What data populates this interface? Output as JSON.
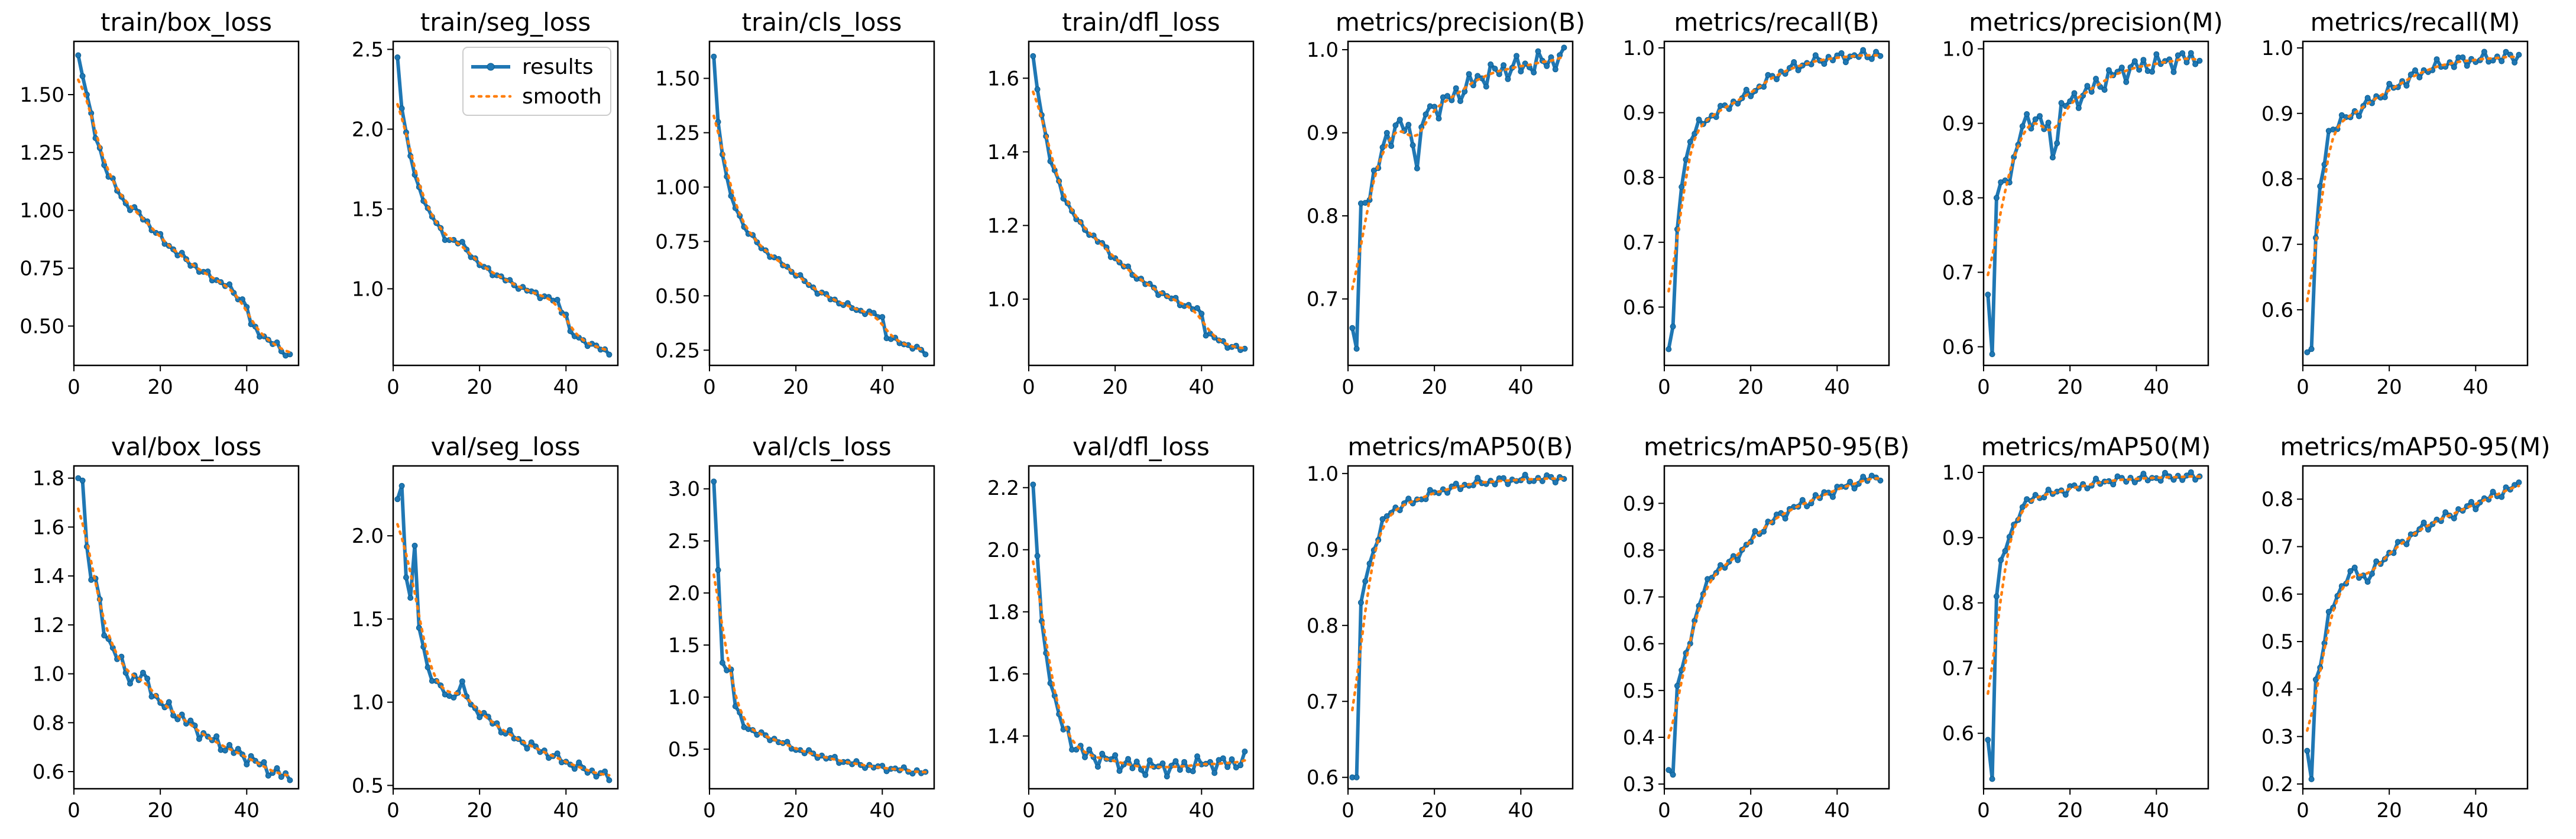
{
  "colors": {
    "results": "#1f77b4",
    "smooth": "#ff7f0e",
    "results_marker_edge": "#0a5d8f"
  },
  "legend": {
    "results_label": "results",
    "smooth_label": "smooth"
  },
  "chart_data": [
    {
      "type": "line",
      "title": "train/box_loss",
      "xlim": [
        0,
        52
      ],
      "ylim": [
        0.33,
        1.73
      ],
      "xticks": [
        "0",
        "20",
        "40"
      ],
      "yticks": [
        "0.50",
        "0.75",
        "1.00",
        "1.25",
        "1.50"
      ],
      "anchors": [
        [
          1,
          1.67
        ],
        [
          2,
          1.58
        ],
        [
          3,
          1.5
        ],
        [
          5,
          1.32
        ],
        [
          8,
          1.15
        ],
        [
          12,
          1.03
        ],
        [
          16,
          0.97
        ],
        [
          20,
          0.88
        ],
        [
          25,
          0.8
        ],
        [
          30,
          0.73
        ],
        [
          35,
          0.68
        ],
        [
          39,
          0.61
        ],
        [
          40,
          0.59
        ],
        [
          41,
          0.5
        ],
        [
          45,
          0.44
        ],
        [
          50,
          0.37
        ]
      ],
      "noise": 0.012
    },
    {
      "type": "line",
      "title": "train/seg_loss",
      "xlim": [
        0,
        52
      ],
      "ylim": [
        0.52,
        2.55
      ],
      "xticks": [
        "0",
        "20",
        "40"
      ],
      "yticks": [
        "1.0",
        "1.5",
        "2.0",
        "2.5"
      ],
      "anchors": [
        [
          1,
          2.45
        ],
        [
          2,
          2.13
        ],
        [
          3,
          1.98
        ],
        [
          5,
          1.7
        ],
        [
          8,
          1.5
        ],
        [
          12,
          1.32
        ],
        [
          16,
          1.28
        ],
        [
          20,
          1.15
        ],
        [
          25,
          1.07
        ],
        [
          30,
          1.0
        ],
        [
          35,
          0.95
        ],
        [
          38,
          0.92
        ],
        [
          39,
          0.86
        ],
        [
          40,
          0.85
        ],
        [
          41,
          0.72
        ],
        [
          45,
          0.66
        ],
        [
          50,
          0.6
        ]
      ],
      "noise": 0.012
    },
    {
      "type": "line",
      "title": "train/cls_loss",
      "xlim": [
        0,
        52
      ],
      "ylim": [
        0.18,
        1.67
      ],
      "xticks": [
        "0",
        "20",
        "40"
      ],
      "yticks": [
        "0.25",
        "0.50",
        "0.75",
        "1.00",
        "1.25",
        "1.50"
      ],
      "anchors": [
        [
          1,
          1.6
        ],
        [
          2,
          1.3
        ],
        [
          3,
          1.15
        ],
        [
          5,
          0.95
        ],
        [
          8,
          0.82
        ],
        [
          12,
          0.72
        ],
        [
          16,
          0.66
        ],
        [
          20,
          0.6
        ],
        [
          25,
          0.52
        ],
        [
          30,
          0.47
        ],
        [
          35,
          0.43
        ],
        [
          39,
          0.41
        ],
        [
          40,
          0.4
        ],
        [
          41,
          0.31
        ],
        [
          45,
          0.28
        ],
        [
          50,
          0.24
        ]
      ],
      "noise": 0.008
    },
    {
      "type": "line",
      "title": "train/dfl_loss",
      "xlim": [
        0,
        52
      ],
      "ylim": [
        0.82,
        1.7
      ],
      "xticks": [
        "0",
        "20",
        "40"
      ],
      "yticks": [
        "1.0",
        "1.2",
        "1.4",
        "1.6"
      ],
      "anchors": [
        [
          1,
          1.66
        ],
        [
          2,
          1.57
        ],
        [
          3,
          1.5
        ],
        [
          5,
          1.38
        ],
        [
          8,
          1.28
        ],
        [
          12,
          1.2
        ],
        [
          16,
          1.16
        ],
        [
          20,
          1.11
        ],
        [
          25,
          1.06
        ],
        [
          30,
          1.02
        ],
        [
          35,
          0.99
        ],
        [
          39,
          0.97
        ],
        [
          40,
          0.96
        ],
        [
          41,
          0.91
        ],
        [
          45,
          0.88
        ],
        [
          50,
          0.86
        ]
      ],
      "noise": 0.006
    },
    {
      "type": "line",
      "title": "metrics/precision(B)",
      "xlim": [
        0,
        52
      ],
      "ylim": [
        0.62,
        1.01
      ],
      "xticks": [
        "0",
        "20",
        "40"
      ],
      "yticks": [
        "0.7",
        "0.8",
        "0.9",
        "1.0"
      ],
      "anchors": [
        [
          1,
          0.665
        ],
        [
          2,
          0.64
        ],
        [
          3,
          0.815
        ],
        [
          5,
          0.83
        ],
        [
          7,
          0.86
        ],
        [
          9,
          0.895
        ],
        [
          12,
          0.91
        ],
        [
          15,
          0.895
        ],
        [
          16,
          0.865
        ],
        [
          18,
          0.925
        ],
        [
          22,
          0.935
        ],
        [
          26,
          0.95
        ],
        [
          30,
          0.965
        ],
        [
          35,
          0.975
        ],
        [
          40,
          0.98
        ],
        [
          45,
          0.985
        ],
        [
          50,
          0.99
        ]
      ],
      "noise": 0.01
    },
    {
      "type": "line",
      "title": "metrics/recall(B)",
      "xlim": [
        0,
        52
      ],
      "ylim": [
        0.51,
        1.01
      ],
      "xticks": [
        "0",
        "20",
        "40"
      ],
      "yticks": [
        "0.6",
        "0.7",
        "0.8",
        "0.9",
        "1.0"
      ],
      "anchors": [
        [
          1,
          0.535
        ],
        [
          2,
          0.57
        ],
        [
          3,
          0.72
        ],
        [
          4,
          0.79
        ],
        [
          6,
          0.86
        ],
        [
          8,
          0.88
        ],
        [
          12,
          0.9
        ],
        [
          16,
          0.915
        ],
        [
          20,
          0.93
        ],
        [
          25,
          0.955
        ],
        [
          30,
          0.97
        ],
        [
          35,
          0.98
        ],
        [
          40,
          0.985
        ],
        [
          45,
          0.988
        ],
        [
          50,
          0.99
        ]
      ],
      "noise": 0.006
    },
    {
      "type": "line",
      "title": "metrics/precision(M)",
      "xlim": [
        0,
        52
      ],
      "ylim": [
        0.575,
        1.01
      ],
      "xticks": [
        "0",
        "20",
        "40"
      ],
      "yticks": [
        "0.6",
        "0.7",
        "0.8",
        "0.9",
        "1.0"
      ],
      "anchors": [
        [
          1,
          0.67
        ],
        [
          2,
          0.59
        ],
        [
          3,
          0.8
        ],
        [
          5,
          0.82
        ],
        [
          7,
          0.85
        ],
        [
          9,
          0.895
        ],
        [
          12,
          0.91
        ],
        [
          15,
          0.89
        ],
        [
          16,
          0.855
        ],
        [
          18,
          0.92
        ],
        [
          22,
          0.935
        ],
        [
          26,
          0.95
        ],
        [
          30,
          0.965
        ],
        [
          35,
          0.975
        ],
        [
          40,
          0.98
        ],
        [
          45,
          0.985
        ],
        [
          50,
          0.99
        ]
      ],
      "noise": 0.01
    },
    {
      "type": "line",
      "title": "metrics/recall(M)",
      "xlim": [
        0,
        52
      ],
      "ylim": [
        0.515,
        1.01
      ],
      "xticks": [
        "0",
        "20",
        "40"
      ],
      "yticks": [
        "0.6",
        "0.7",
        "0.8",
        "0.9",
        "1.0"
      ],
      "anchors": [
        [
          1,
          0.535
        ],
        [
          2,
          0.54
        ],
        [
          3,
          0.71
        ],
        [
          4,
          0.78
        ],
        [
          6,
          0.87
        ],
        [
          8,
          0.885
        ],
        [
          12,
          0.9
        ],
        [
          16,
          0.92
        ],
        [
          20,
          0.935
        ],
        [
          25,
          0.955
        ],
        [
          30,
          0.97
        ],
        [
          35,
          0.978
        ],
        [
          40,
          0.982
        ],
        [
          45,
          0.985
        ],
        [
          50,
          0.987
        ]
      ],
      "noise": 0.007
    },
    {
      "type": "line",
      "title": "val/box_loss",
      "xlim": [
        0,
        52
      ],
      "ylim": [
        0.53,
        1.85
      ],
      "xticks": [
        "0",
        "20",
        "40"
      ],
      "yticks": [
        "0.6",
        "0.8",
        "1.0",
        "1.2",
        "1.4",
        "1.6",
        "1.8"
      ],
      "anchors": [
        [
          1,
          1.8
        ],
        [
          2,
          1.79
        ],
        [
          3,
          1.52
        ],
        [
          4,
          1.4
        ],
        [
          5,
          1.38
        ],
        [
          7,
          1.18
        ],
        [
          10,
          1.07
        ],
        [
          13,
          0.98
        ],
        [
          16,
          0.99
        ],
        [
          20,
          0.88
        ],
        [
          25,
          0.82
        ],
        [
          30,
          0.75
        ],
        [
          35,
          0.7
        ],
        [
          40,
          0.66
        ],
        [
          45,
          0.61
        ],
        [
          50,
          0.57
        ]
      ],
      "noise": 0.02
    },
    {
      "type": "line",
      "title": "val/seg_loss",
      "xlim": [
        0,
        52
      ],
      "ylim": [
        0.48,
        2.42
      ],
      "xticks": [
        "0",
        "20",
        "40"
      ],
      "yticks": [
        "0.5",
        "1.0",
        "1.5",
        "2.0"
      ],
      "anchors": [
        [
          1,
          2.22
        ],
        [
          2,
          2.3
        ],
        [
          3,
          1.75
        ],
        [
          4,
          1.65
        ],
        [
          5,
          1.92
        ],
        [
          6,
          1.45
        ],
        [
          8,
          1.2
        ],
        [
          10,
          1.12
        ],
        [
          13,
          1.02
        ],
        [
          16,
          1.1
        ],
        [
          18,
          0.98
        ],
        [
          22,
          0.9
        ],
        [
          26,
          0.82
        ],
        [
          30,
          0.76
        ],
        [
          35,
          0.7
        ],
        [
          40,
          0.64
        ],
        [
          45,
          0.59
        ],
        [
          50,
          0.55
        ]
      ],
      "noise": 0.02
    },
    {
      "type": "line",
      "title": "val/cls_loss",
      "xlim": [
        0,
        52
      ],
      "ylim": [
        0.12,
        3.22
      ],
      "xticks": [
        "0",
        "20",
        "40"
      ],
      "yticks": [
        "0.5",
        "1.0",
        "1.5",
        "2.0",
        "2.5",
        "3.0"
      ],
      "anchors": [
        [
          1,
          3.07
        ],
        [
          2,
          2.22
        ],
        [
          3,
          1.33
        ],
        [
          4,
          1.25
        ],
        [
          5,
          1.28
        ],
        [
          6,
          0.92
        ],
        [
          8,
          0.72
        ],
        [
          10,
          0.68
        ],
        [
          13,
          0.62
        ],
        [
          16,
          0.58
        ],
        [
          20,
          0.5
        ],
        [
          25,
          0.44
        ],
        [
          30,
          0.39
        ],
        [
          35,
          0.35
        ],
        [
          40,
          0.32
        ],
        [
          45,
          0.3
        ],
        [
          50,
          0.27
        ]
      ],
      "noise": 0.02
    },
    {
      "type": "line",
      "title": "val/dfl_loss",
      "xlim": [
        0,
        52
      ],
      "ylim": [
        1.23,
        2.27
      ],
      "xticks": [
        "0",
        "20",
        "40"
      ],
      "yticks": [
        "1.4",
        "1.6",
        "1.8",
        "2.0",
        "2.2"
      ],
      "anchors": [
        [
          1,
          2.21
        ],
        [
          2,
          1.98
        ],
        [
          3,
          1.77
        ],
        [
          4,
          1.66
        ],
        [
          5,
          1.6
        ],
        [
          6,
          1.52
        ],
        [
          8,
          1.42
        ],
        [
          10,
          1.38
        ],
        [
          13,
          1.34
        ],
        [
          16,
          1.33
        ],
        [
          20,
          1.32
        ],
        [
          25,
          1.3
        ],
        [
          30,
          1.3
        ],
        [
          35,
          1.3
        ],
        [
          40,
          1.31
        ],
        [
          45,
          1.31
        ],
        [
          50,
          1.32
        ]
      ],
      "noise": 0.02
    },
    {
      "type": "line",
      "title": "metrics/mAP50(B)",
      "xlim": [
        0,
        52
      ],
      "ylim": [
        0.585,
        1.01
      ],
      "xticks": [
        "0",
        "20",
        "40"
      ],
      "yticks": [
        "0.6",
        "0.7",
        "0.8",
        "0.9",
        "1.0"
      ],
      "anchors": [
        [
          1,
          0.6
        ],
        [
          2,
          0.6
        ],
        [
          3,
          0.83
        ],
        [
          4,
          0.86
        ],
        [
          6,
          0.9
        ],
        [
          8,
          0.935
        ],
        [
          10,
          0.95
        ],
        [
          13,
          0.96
        ],
        [
          16,
          0.965
        ],
        [
          20,
          0.975
        ],
        [
          25,
          0.982
        ],
        [
          30,
          0.988
        ],
        [
          35,
          0.99
        ],
        [
          40,
          0.992
        ],
        [
          45,
          0.993
        ],
        [
          50,
          0.994
        ]
      ],
      "noise": 0.004
    },
    {
      "type": "line",
      "title": "metrics/mAP50-95(B)",
      "xlim": [
        0,
        52
      ],
      "ylim": [
        0.29,
        0.98
      ],
      "xticks": [
        "0",
        "20",
        "40"
      ],
      "yticks": [
        "0.3",
        "0.4",
        "0.5",
        "0.6",
        "0.7",
        "0.8",
        "0.9"
      ],
      "anchors": [
        [
          1,
          0.33
        ],
        [
          2,
          0.32
        ],
        [
          3,
          0.51
        ],
        [
          5,
          0.57
        ],
        [
          7,
          0.65
        ],
        [
          9,
          0.71
        ],
        [
          12,
          0.76
        ],
        [
          15,
          0.77
        ],
        [
          18,
          0.8
        ],
        [
          22,
          0.84
        ],
        [
          26,
          0.87
        ],
        [
          30,
          0.89
        ],
        [
          35,
          0.91
        ],
        [
          40,
          0.93
        ],
        [
          45,
          0.945
        ],
        [
          50,
          0.96
        ]
      ],
      "noise": 0.008
    },
    {
      "type": "line",
      "title": "metrics/mAP50(M)",
      "xlim": [
        0,
        52
      ],
      "ylim": [
        0.515,
        1.01
      ],
      "xticks": [
        "0",
        "20",
        "40"
      ],
      "yticks": [
        "0.6",
        "0.7",
        "0.8",
        "0.9",
        "1.0"
      ],
      "anchors": [
        [
          1,
          0.59
        ],
        [
          2,
          0.53
        ],
        [
          3,
          0.81
        ],
        [
          4,
          0.86
        ],
        [
          6,
          0.9
        ],
        [
          8,
          0.935
        ],
        [
          10,
          0.955
        ],
        [
          13,
          0.965
        ],
        [
          16,
          0.968
        ],
        [
          20,
          0.975
        ],
        [
          25,
          0.982
        ],
        [
          30,
          0.988
        ],
        [
          35,
          0.99
        ],
        [
          40,
          0.992
        ],
        [
          45,
          0.993
        ],
        [
          50,
          0.994
        ]
      ],
      "noise": 0.005
    },
    {
      "type": "line",
      "title": "metrics/mAP50-95(M)",
      "xlim": [
        0,
        52
      ],
      "ylim": [
        0.19,
        0.87
      ],
      "xticks": [
        "0",
        "20",
        "40"
      ],
      "yticks": [
        "0.2",
        "0.3",
        "0.4",
        "0.5",
        "0.6",
        "0.7",
        "0.8"
      ],
      "anchors": [
        [
          1,
          0.27
        ],
        [
          2,
          0.21
        ],
        [
          3,
          0.42
        ],
        [
          4,
          0.45
        ],
        [
          6,
          0.55
        ],
        [
          8,
          0.6
        ],
        [
          10,
          0.63
        ],
        [
          12,
          0.65
        ],
        [
          15,
          0.63
        ],
        [
          18,
          0.67
        ],
        [
          22,
          0.7
        ],
        [
          26,
          0.73
        ],
        [
          30,
          0.75
        ],
        [
          35,
          0.77
        ],
        [
          40,
          0.79
        ],
        [
          45,
          0.81
        ],
        [
          50,
          0.83
        ]
      ],
      "noise": 0.008
    }
  ]
}
